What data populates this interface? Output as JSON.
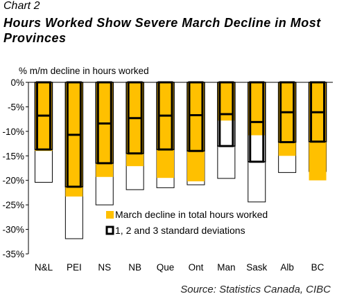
{
  "header": {
    "label": "Chart 2",
    "title": "Hours Worked Show Severe March Decline in Most Provinces"
  },
  "footer": {
    "source": "Source: Statistics Canada, CIBC"
  },
  "colors": {
    "bar": "#FFC000",
    "outline": "#000000",
    "background": "#FFFFFF"
  },
  "chart_data": {
    "type": "bar",
    "title": "Hours Worked Show Severe March Decline in Most Provinces",
    "ylabel": "% m/m decline in hours worked",
    "xlabel": "",
    "categories": [
      "N&L",
      "PEI",
      "NS",
      "NB",
      "Que",
      "Ont",
      "Man",
      "Sask",
      "Alb",
      "BC"
    ],
    "ylim": [
      -35,
      0
    ],
    "yticks": [
      0,
      -5,
      -10,
      -15,
      -20,
      -25,
      -30,
      -35
    ],
    "ytick_labels": [
      "0%",
      "-5%",
      "-10%",
      "-15%",
      "-20%",
      "-25%",
      "-30%",
      "-35%"
    ],
    "grid": false,
    "legend": "center-right",
    "series": [
      {
        "name": "March decline in total hours worked",
        "values": [
          -14.0,
          -23.3,
          -19.3,
          -17.1,
          -19.5,
          -20.2,
          -7.8,
          -10.8,
          -15.0,
          -20.0
        ]
      },
      {
        "name": "1, 2 and 3 standard deviations",
        "sd1": [
          -6.8,
          -10.7,
          -8.4,
          -7.3,
          -6.8,
          -6.7,
          -6.5,
          -8.1,
          -6.1,
          -6.1
        ],
        "sd2": [
          -13.7,
          -21.3,
          -16.5,
          -14.5,
          -13.7,
          -14.0,
          -13.0,
          -16.2,
          -12.2,
          -12.1
        ],
        "sd3": [
          -20.4,
          -31.9,
          -25.0,
          -21.9,
          -21.5,
          -20.9,
          -19.6,
          -24.4,
          -18.4,
          -18.2
        ]
      }
    ]
  }
}
